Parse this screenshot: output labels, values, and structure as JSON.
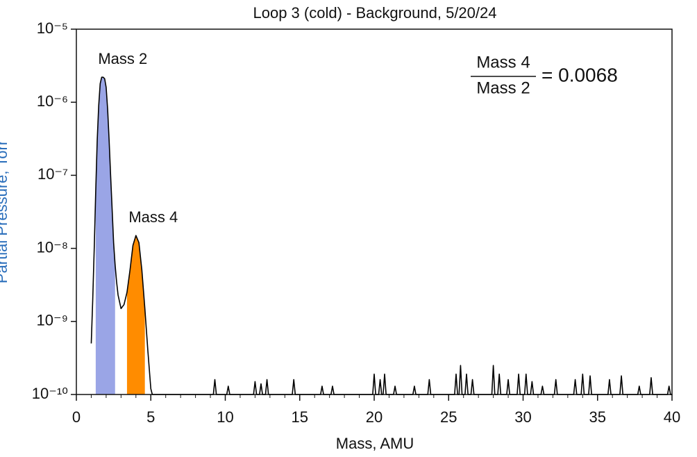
{
  "chart_data": {
    "type": "line",
    "title": "Loop 3 (cold) - Background, 5/20/24",
    "x_label": "Mass, AMU",
    "y_label": "Partial Pressure, Torr",
    "log_y": true,
    "color": "#000000",
    "xlim": [
      0,
      40
    ],
    "xticks": [
      0,
      5,
      10,
      15,
      20,
      25,
      30,
      35,
      40
    ],
    "ylim": [
      1e-10,
      1e-05
    ],
    "yticks": [
      {
        "value": 1e-10,
        "label": "10⁻¹⁰"
      },
      {
        "value": 1e-09,
        "label": "10⁻⁹"
      },
      {
        "value": 1e-08,
        "label": "10⁻⁸"
      },
      {
        "value": 1e-07,
        "label": "10⁻⁷"
      },
      {
        "value": 1e-06,
        "label": "10⁻⁶"
      },
      {
        "value": 1e-05,
        "label": "10⁻⁵"
      }
    ],
    "x": [
      1.0,
      1.1,
      1.2,
      1.3,
      1.4,
      1.5,
      1.6,
      1.7,
      1.8,
      1.9,
      2.0,
      2.1,
      2.2,
      2.3,
      2.4,
      2.5,
      2.6,
      2.7,
      2.8,
      3.0,
      3.2,
      3.4,
      3.6,
      3.8,
      4.0,
      4.2,
      4.4,
      4.6,
      4.8,
      5.0,
      5.1,
      9.2,
      9.3,
      9.4,
      10.1,
      10.2,
      10.3,
      11.9,
      12.0,
      12.1,
      12.3,
      12.4,
      12.5,
      12.7,
      12.8,
      12.9,
      14.5,
      14.6,
      14.7,
      16.4,
      16.5,
      16.6,
      17.1,
      17.2,
      17.3,
      19.9,
      20.0,
      20.1,
      20.3,
      20.4,
      20.5,
      20.6,
      20.7,
      20.8,
      21.3,
      21.4,
      21.5,
      22.6,
      22.7,
      22.8,
      23.6,
      23.7,
      23.8,
      25.4,
      25.5,
      25.6,
      25.7,
      25.8,
      25.9,
      26.1,
      26.2,
      26.3,
      26.5,
      26.6,
      26.7,
      27.9,
      28.0,
      28.1,
      28.3,
      28.4,
      28.5,
      28.9,
      29.0,
      29.1,
      29.6,
      29.7,
      29.8,
      30.1,
      30.2,
      30.3,
      30.5,
      30.6,
      30.7,
      31.2,
      31.3,
      31.4,
      32.1,
      32.2,
      32.3,
      33.4,
      33.5,
      33.6,
      33.9,
      34.0,
      34.1,
      34.4,
      34.5,
      34.6,
      35.7,
      35.8,
      35.9,
      36.5,
      36.6,
      36.7,
      37.7,
      37.8,
      37.9,
      38.5,
      38.6,
      38.7,
      39.7,
      39.8,
      39.9,
      40.0
    ],
    "values": [
      5e-10,
      2e-09,
      1e-08,
      6e-08,
      3e-07,
      9e-07,
      1.8e-06,
      2.2e-06,
      2.2e-06,
      2.1e-06,
      1.6e-06,
      8e-07,
      3e-07,
      1e-07,
      3.5e-08,
      1.2e-08,
      6e-09,
      3.5e-09,
      2.3e-09,
      1.5e-09,
      1.7e-09,
      2.5e-09,
      5e-09,
      1.1e-08,
      1.5e-08,
      1.2e-08,
      5e-09,
      1.5e-09,
      4e-10,
      1.2e-10,
      1e-10,
      1e-10,
      1.6e-10,
      1e-10,
      1e-10,
      1.3e-10,
      1e-10,
      1e-10,
      1.5e-10,
      1e-10,
      1e-10,
      1.4e-10,
      1e-10,
      1e-10,
      1.6e-10,
      1e-10,
      1e-10,
      1.6e-10,
      1e-10,
      1e-10,
      1.3e-10,
      1e-10,
      1e-10,
      1.3e-10,
      1e-10,
      1e-10,
      1.9e-10,
      1e-10,
      1e-10,
      1.6e-10,
      1e-10,
      1e-10,
      1.9e-10,
      1e-10,
      1e-10,
      1.3e-10,
      1e-10,
      1e-10,
      1.3e-10,
      1e-10,
      1e-10,
      1.6e-10,
      1e-10,
      1e-10,
      1.9e-10,
      1e-10,
      1e-10,
      2.5e-10,
      1e-10,
      1e-10,
      1.9e-10,
      1e-10,
      1e-10,
      1.6e-10,
      1e-10,
      1e-10,
      2.5e-10,
      1e-10,
      1e-10,
      1.9e-10,
      1e-10,
      1e-10,
      1.6e-10,
      1e-10,
      1e-10,
      1.9e-10,
      1e-10,
      1e-10,
      1.9e-10,
      1e-10,
      1e-10,
      1.5e-10,
      1e-10,
      1e-10,
      1.3e-10,
      1e-10,
      1e-10,
      1.6e-10,
      1e-10,
      1e-10,
      1.6e-10,
      1e-10,
      1e-10,
      1.9e-10,
      1e-10,
      1e-10,
      1.8e-10,
      1e-10,
      1e-10,
      1.6e-10,
      1e-10,
      1e-10,
      1.8e-10,
      1e-10,
      1e-10,
      1.3e-10,
      1e-10,
      1e-10,
      1.7e-10,
      1e-10,
      1e-10,
      1.3e-10,
      1e-10,
      1e-10
    ],
    "regions": [
      {
        "label": "Mass 2",
        "from": 1.3,
        "to": 2.6,
        "color": "#9aa5e6"
      },
      {
        "label": "Mass 4",
        "from": 3.4,
        "to": 4.6,
        "color": "#ff8c00"
      }
    ],
    "ratio": {
      "numerator": "Mass 4",
      "denominator": "Mass 2",
      "text": "= 0.0068"
    }
  }
}
